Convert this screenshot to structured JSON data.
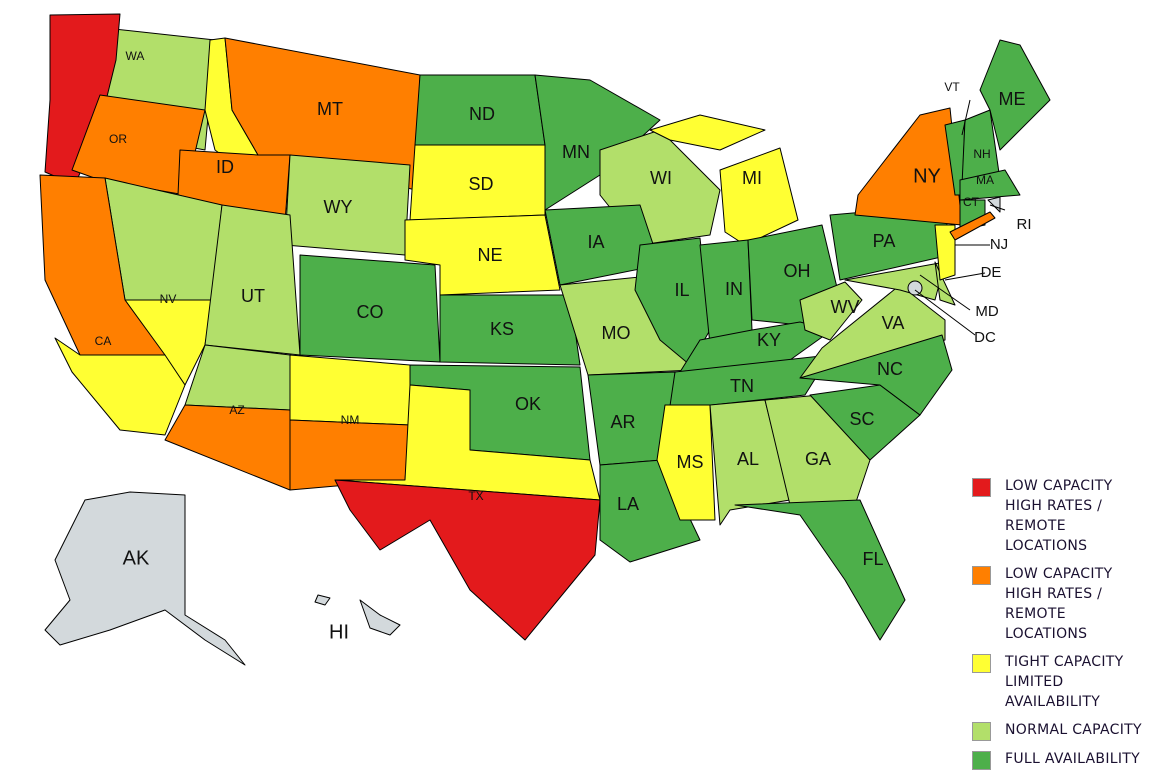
{
  "colors": {
    "low_capacity_red": "#e31a1c",
    "low_capacity_orange": "#ff7f00",
    "tight_capacity": "#ffff33",
    "normal_capacity": "#b2df6a",
    "full_availability": "#4daf4a",
    "no_data": "#d3d9dc"
  },
  "legend": [
    {
      "key": "low_capacity_red",
      "lines": [
        "LOW CAPACITY",
        "HIGH RATES /",
        "REMOTE",
        "LOCATIONS"
      ]
    },
    {
      "key": "low_capacity_orange",
      "lines": [
        "LOW CAPACITY",
        "HIGH RATES /",
        "REMOTE",
        "LOCATIONS"
      ]
    },
    {
      "key": "tight_capacity",
      "lines": [
        "TIGHT CAPACITY",
        "LIMITED",
        "AVAILABILITY"
      ]
    },
    {
      "key": "normal_capacity",
      "lines": [
        "NORMAL CAPACITY"
      ]
    },
    {
      "key": "full_availability",
      "lines": [
        "FULL AVAILABILITY"
      ]
    }
  ],
  "states": {
    "WA": {
      "label": "WA",
      "category": "normal_capacity",
      "coastal_strip": "low_capacity_red"
    },
    "OR": {
      "label": "OR",
      "category": "low_capacity_orange",
      "coastal_strip": "low_capacity_red"
    },
    "CA": {
      "label": "CA",
      "category": "low_capacity_orange",
      "south": "tight_capacity"
    },
    "NV": {
      "label": "NV",
      "category": "tight_capacity",
      "north": "normal_capacity"
    },
    "ID": {
      "label": "ID",
      "category": "low_capacity_orange",
      "north": "tight_capacity"
    },
    "MT": {
      "label": "MT",
      "category": "low_capacity_orange"
    },
    "WY": {
      "label": "WY",
      "category": "normal_capacity"
    },
    "UT": {
      "label": "UT",
      "category": "normal_capacity"
    },
    "AZ": {
      "label": "AZ",
      "category": "low_capacity_orange",
      "north": "normal_capacity"
    },
    "CO": {
      "label": "CO",
      "category": "full_availability"
    },
    "NM": {
      "label": "NM",
      "category": "low_capacity_orange",
      "north": "tight_capacity"
    },
    "ND": {
      "label": "ND",
      "category": "full_availability"
    },
    "SD": {
      "label": "SD",
      "category": "tight_capacity"
    },
    "NE": {
      "label": "NE",
      "category": "tight_capacity"
    },
    "KS": {
      "label": "KS",
      "category": "full_availability"
    },
    "OK": {
      "label": "OK",
      "category": "full_availability"
    },
    "TX": {
      "label": "TX",
      "category": "low_capacity_red",
      "north": "tight_capacity"
    },
    "MN": {
      "label": "MN",
      "category": "full_availability"
    },
    "IA": {
      "label": "IA",
      "category": "full_availability"
    },
    "MO": {
      "label": "MO",
      "category": "normal_capacity"
    },
    "AR": {
      "label": "AR",
      "category": "full_availability"
    },
    "LA": {
      "label": "LA",
      "category": "full_availability"
    },
    "WI": {
      "label": "WI",
      "category": "normal_capacity"
    },
    "IL": {
      "label": "IL",
      "category": "full_availability"
    },
    "MI": {
      "label": "MI",
      "category": "tight_capacity"
    },
    "IN": {
      "label": "IN",
      "category": "full_availability"
    },
    "OH": {
      "label": "OH",
      "category": "full_availability"
    },
    "KY": {
      "label": "KY",
      "category": "full_availability"
    },
    "TN": {
      "label": "TN",
      "category": "full_availability"
    },
    "MS": {
      "label": "MS",
      "category": "tight_capacity"
    },
    "AL": {
      "label": "AL",
      "category": "normal_capacity"
    },
    "GA": {
      "label": "GA",
      "category": "normal_capacity"
    },
    "FL": {
      "label": "FL",
      "category": "full_availability"
    },
    "SC": {
      "label": "SC",
      "category": "full_availability"
    },
    "NC": {
      "label": "NC",
      "category": "full_availability"
    },
    "VA": {
      "label": "VA",
      "category": "normal_capacity"
    },
    "WV": {
      "label": "WV",
      "category": "normal_capacity"
    },
    "MD": {
      "label": "MD",
      "category": "normal_capacity"
    },
    "DE": {
      "label": "DE",
      "category": "normal_capacity"
    },
    "DC": {
      "label": "DC",
      "category": "no_data"
    },
    "PA": {
      "label": "PA",
      "category": "full_availability"
    },
    "NJ": {
      "label": "NJ",
      "category": "tight_capacity"
    },
    "NY": {
      "label": "NY",
      "category": "low_capacity_orange"
    },
    "CT": {
      "label": "CT",
      "category": "full_availability"
    },
    "RI": {
      "label": "RI",
      "category": "no_data"
    },
    "MA": {
      "label": "MA",
      "category": "full_availability"
    },
    "VT": {
      "label": "VT",
      "category": "full_availability"
    },
    "NH": {
      "label": "NH",
      "category": "full_availability"
    },
    "ME": {
      "label": "ME",
      "category": "full_availability"
    },
    "AK": {
      "label": "AK",
      "category": "no_data"
    },
    "HI": {
      "label": "HI",
      "category": "no_data"
    }
  }
}
